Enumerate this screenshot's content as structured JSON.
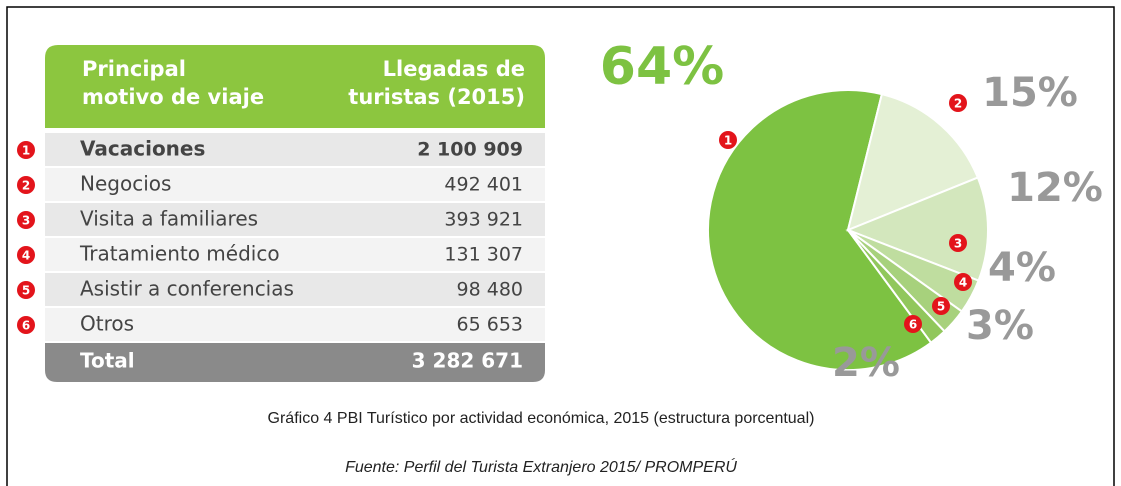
{
  "table": {
    "header": [
      [
        "Principal",
        "motivo de viaje"
      ],
      [
        "Llegadas de",
        "turistas (2015)"
      ]
    ],
    "rows": [
      {
        "number": "1",
        "label": "Vacaciones",
        "value": "2 100 909"
      },
      {
        "number": "2",
        "label": "Negocios",
        "value": "492 401"
      },
      {
        "number": "3",
        "label": "Visita a familiares",
        "value": "393 921"
      },
      {
        "number": "4",
        "label": "Tratamiento médico",
        "value": "131 307"
      },
      {
        "number": "5",
        "label": "Asistir a conferencias",
        "value": "98 480"
      },
      {
        "number": "6",
        "label": "Otros",
        "value": "65 653"
      }
    ],
    "total": {
      "label": "Total",
      "value": "3 282 671"
    }
  },
  "chart_data": {
    "type": "pie",
    "categories": [
      "1",
      "2",
      "3",
      "4",
      "5",
      "6"
    ],
    "values": [
      64,
      15,
      12,
      4,
      3,
      2
    ],
    "value_labels": [
      "64%",
      "15%",
      "12%",
      "4%",
      "3%",
      "2%"
    ],
    "colors": [
      "#7dc242",
      "#e4f0d5",
      "#d3e7bd",
      "#bfdd9f",
      "#a7d17c",
      "#91c75c"
    ]
  },
  "caption": "Gráfico 4 PBI Turístico por actividad económica, 2015 (estructura porcentual)",
  "source": "Fuente: Perfil del Turista Extranjero 2015/ PROMPERÚ"
}
